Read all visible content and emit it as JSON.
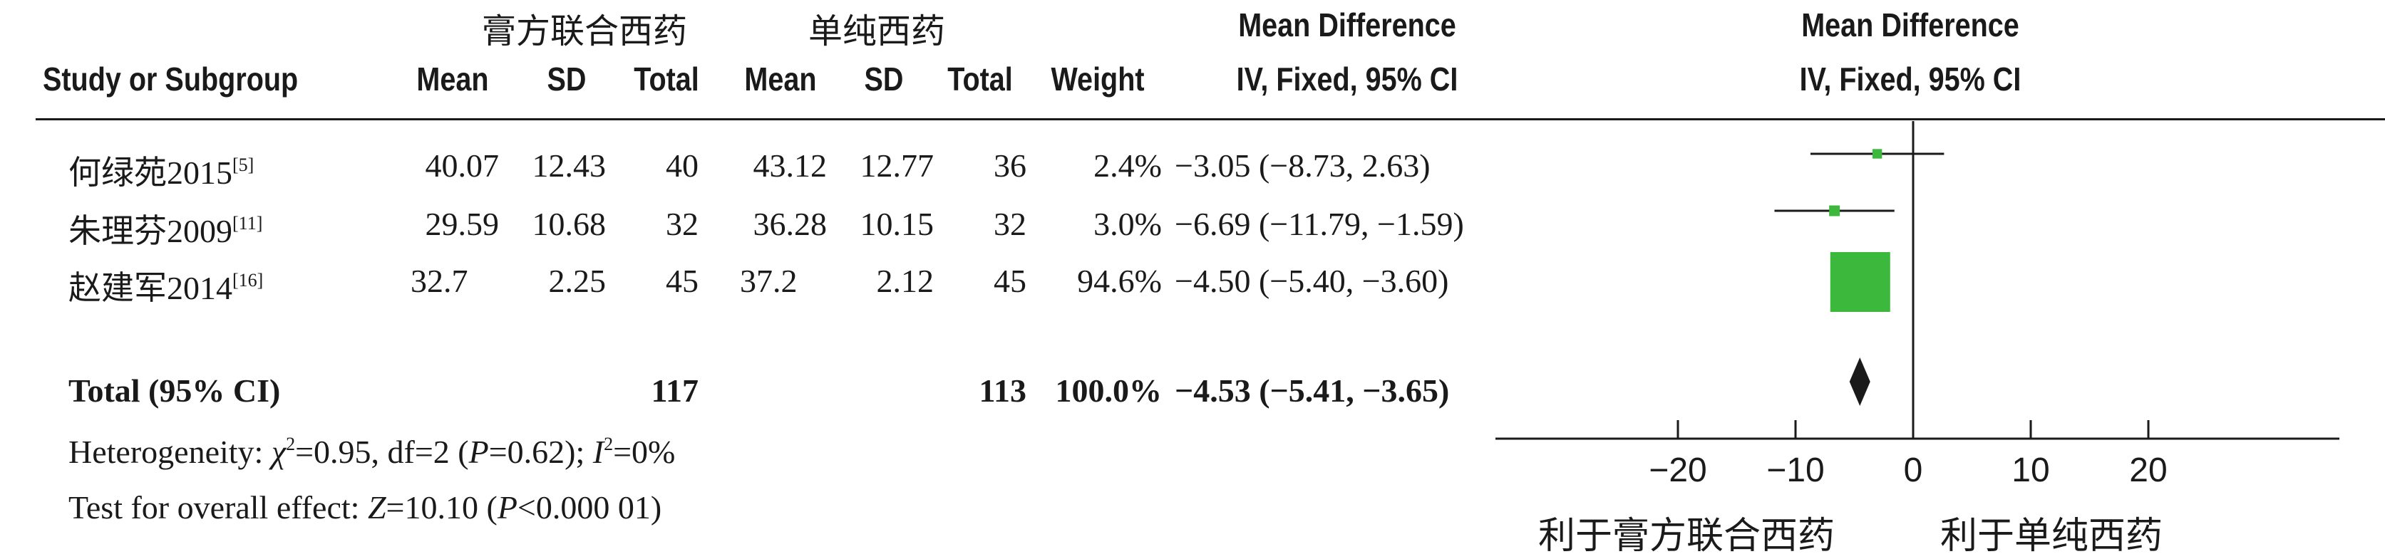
{
  "groups": {
    "experimental": "膏方联合西药",
    "control": "单纯西药",
    "mean_difference": "Mean Difference",
    "plot_mean_difference": "Mean Difference"
  },
  "headers": {
    "study": "Study or Subgroup",
    "exp_mean": "Mean",
    "exp_sd": "SD",
    "exp_total": "Total",
    "ctl_mean": "Mean",
    "ctl_sd": "SD",
    "ctl_total": "Total",
    "weight": "Weight",
    "ci": "IV, Fixed, 95% CI",
    "plot_ci": "IV, Fixed, 95% CI"
  },
  "studies": [
    {
      "name": "何绿苑2015",
      "ref": "[5]",
      "exp_mean": "40.07",
      "exp_sd": "12.43",
      "exp_total": "40",
      "ctl_mean": "43.12",
      "ctl_sd": "12.77",
      "ctl_total": "36",
      "weight": "2.4%",
      "ci_text": "−3.05 (−8.73, 2.63)"
    },
    {
      "name": "朱理芬2009",
      "ref": "[11]",
      "exp_mean": "29.59",
      "exp_sd": "10.68",
      "exp_total": "32",
      "ctl_mean": "36.28",
      "ctl_sd": "10.15",
      "ctl_total": "32",
      "weight": "3.0%",
      "ci_text": "−6.69 (−11.79, −1.59)"
    },
    {
      "name": "赵建军2014",
      "ref": "[16]",
      "exp_mean": "32.7",
      "exp_sd": "2.25",
      "exp_total": "45",
      "ctl_mean": "37.2",
      "ctl_sd": "2.12",
      "ctl_total": "45",
      "weight": "94.6%",
      "ci_text": "−4.50 (−5.40, −3.60)"
    }
  ],
  "total": {
    "label": "Total (95% CI)",
    "exp_total": "117",
    "ctl_total": "113",
    "weight": "100.0%",
    "ci_text": "−4.53 (−5.41, −3.65)"
  },
  "heterogeneity": {
    "prefix": "Heterogeneity: ",
    "chi": "χ",
    "chi_sup": "2",
    "chi_rest": "=0.95, df=2 (",
    "p": "P",
    "p_rest": "=0.62); ",
    "i": "I",
    "i_sup": "2",
    "i_rest": "=0%"
  },
  "overall_effect": {
    "prefix": "Test for overall effect: ",
    "z": "Z",
    "z_rest": "=10.10 (",
    "p": "P",
    "p_rest": "<0.000 01)"
  },
  "axis_labels": {
    "left": "利于膏方联合西药",
    "right": "利于单纯西药"
  },
  "colors": {
    "box": "#3cb93c",
    "diamond": "#1a1a1a",
    "text": "#1a1a1a"
  },
  "chart_data": {
    "type": "forest",
    "xlim": [
      -25,
      25
    ],
    "ticks": [
      -20,
      -10,
      0,
      10,
      20
    ],
    "tick_labels": [
      "−20",
      "−10",
      "0",
      "10",
      "20"
    ],
    "studies": [
      {
        "name": "何绿苑2015",
        "estimate": -3.05,
        "lower": -8.73,
        "upper": 2.63,
        "weight": 2.4
      },
      {
        "name": "朱理芬2009",
        "estimate": -6.69,
        "lower": -11.79,
        "upper": -1.59,
        "weight": 3.0
      },
      {
        "name": "赵建军2014",
        "estimate": -4.5,
        "lower": -5.4,
        "upper": -3.6,
        "weight": 94.6
      }
    ],
    "pooled": {
      "estimate": -4.53,
      "lower": -5.41,
      "upper": -3.65
    }
  }
}
